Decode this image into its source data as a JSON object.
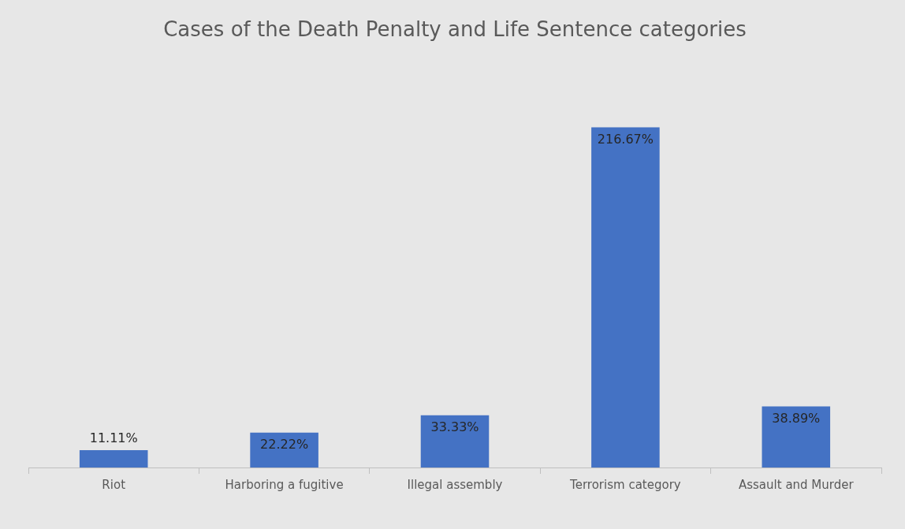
{
  "chart_data": {
    "type": "bar",
    "title": "Cases of the Death Penalty and Life Sentence categories",
    "categories": [
      "Riot",
      "Harboring a fugitive",
      "Illegal assembly",
      "Terrorism category",
      "Assault and Murder"
    ],
    "values": [
      11.11,
      22.22,
      33.33,
      216.67,
      38.89
    ],
    "value_labels": [
      "11.11%",
      "22.22%",
      "33.33%",
      "216.67%",
      "38.89%"
    ],
    "color": "#4472c4",
    "grid": false,
    "legend": false
  }
}
